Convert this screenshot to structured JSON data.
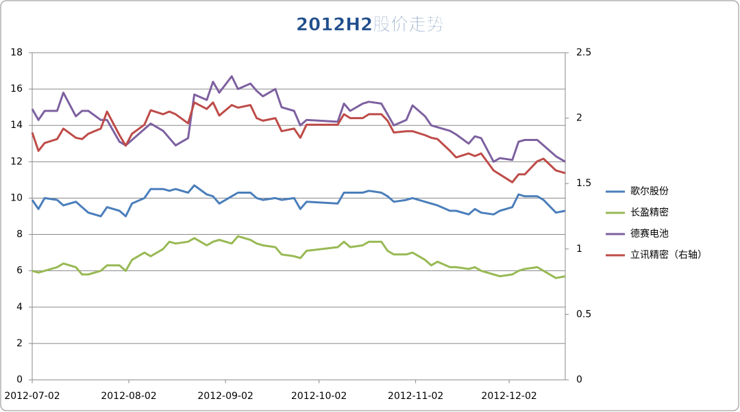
{
  "chart_data": {
    "type": "line",
    "title": "2012H2股价走势",
    "x": [
      "2012-07-02",
      "2012-07-04",
      "2012-07-06",
      "2012-07-10",
      "2012-07-12",
      "2012-07-16",
      "2012-07-18",
      "2012-07-20",
      "2012-07-24",
      "2012-07-26",
      "2012-07-30",
      "2012-08-01",
      "2012-08-03",
      "2012-08-07",
      "2012-08-09",
      "2012-08-13",
      "2012-08-15",
      "2012-08-17",
      "2012-08-21",
      "2012-08-23",
      "2012-08-27",
      "2012-08-29",
      "2012-08-31",
      "2012-09-04",
      "2012-09-06",
      "2012-09-10",
      "2012-09-12",
      "2012-09-14",
      "2012-09-18",
      "2012-09-20",
      "2012-09-24",
      "2012-09-26",
      "2012-09-28",
      "2012-10-08",
      "2012-10-10",
      "2012-10-12",
      "2012-10-16",
      "2012-10-18",
      "2012-10-22",
      "2012-10-24",
      "2012-10-26",
      "2012-10-30",
      "2012-11-01",
      "2012-11-05",
      "2012-11-07",
      "2012-11-09",
      "2012-11-13",
      "2012-11-15",
      "2012-11-19",
      "2012-11-21",
      "2012-11-23",
      "2012-11-27",
      "2012-11-29",
      "2012-12-03",
      "2012-12-05",
      "2012-12-07",
      "2012-12-11",
      "2012-12-13",
      "2012-12-17",
      "2012-12-20"
    ],
    "series": [
      {
        "name": "歌尔股份",
        "color": "#4a7ebb",
        "values": [
          9.9,
          9.4,
          10.0,
          9.9,
          9.6,
          9.8,
          9.5,
          9.2,
          9.0,
          9.5,
          9.3,
          9.0,
          9.7,
          10.0,
          10.5,
          10.5,
          10.4,
          10.5,
          10.3,
          10.7,
          10.2,
          10.1,
          9.7,
          10.1,
          10.3,
          10.3,
          10.0,
          9.9,
          10.0,
          9.9,
          10.0,
          9.4,
          9.8,
          9.7,
          10.3,
          10.3,
          10.3,
          10.4,
          10.3,
          10.1,
          9.8,
          9.9,
          10.0,
          9.8,
          9.7,
          9.6,
          9.3,
          9.3,
          9.1,
          9.4,
          9.2,
          9.1,
          9.3,
          9.5,
          10.2,
          10.1,
          10.1,
          9.9,
          9.2,
          9.3
        ]
      },
      {
        "name": "长盈精密",
        "color": "#98b954",
        "values": [
          6.0,
          5.9,
          6.0,
          6.2,
          6.4,
          6.2,
          5.8,
          5.8,
          6.0,
          6.3,
          6.3,
          6.0,
          6.6,
          7.0,
          6.8,
          7.2,
          7.6,
          7.5,
          7.6,
          7.8,
          7.4,
          7.6,
          7.7,
          7.5,
          7.9,
          7.7,
          7.5,
          7.4,
          7.3,
          6.9,
          6.8,
          6.7,
          7.1,
          7.3,
          7.6,
          7.3,
          7.4,
          7.6,
          7.6,
          7.1,
          6.9,
          6.9,
          7.0,
          6.6,
          6.3,
          6.5,
          6.2,
          6.2,
          6.1,
          6.2,
          6.0,
          5.8,
          5.7,
          5.8,
          6.0,
          6.1,
          6.2,
          6.0,
          5.6,
          5.7
        ]
      },
      {
        "name": "德赛电池",
        "color": "#7d60a0",
        "values": [
          14.9,
          14.3,
          14.8,
          14.8,
          15.8,
          14.5,
          14.8,
          14.8,
          14.3,
          14.3,
          13.1,
          12.9,
          13.2,
          13.8,
          14.1,
          13.7,
          13.3,
          12.9,
          13.3,
          15.7,
          15.4,
          16.4,
          15.8,
          16.7,
          16.0,
          16.3,
          15.9,
          15.6,
          16.0,
          15.0,
          14.8,
          14.0,
          14.3,
          14.2,
          15.2,
          14.8,
          15.2,
          15.3,
          15.2,
          14.6,
          14.0,
          14.3,
          15.1,
          14.5,
          14.0,
          13.9,
          13.7,
          13.5,
          13.0,
          13.4,
          13.3,
          12.0,
          12.2,
          12.1,
          13.1,
          13.2,
          13.2,
          12.9,
          12.3,
          12.0
        ]
      },
      {
        "name": "立讯精密（右轴）",
        "color": "#be4b48",
        "axis": "y2",
        "values": [
          1.89,
          1.75,
          1.81,
          1.84,
          1.92,
          1.85,
          1.84,
          1.88,
          1.92,
          2.05,
          1.87,
          1.79,
          1.88,
          1.95,
          2.06,
          2.03,
          2.05,
          2.03,
          1.96,
          2.12,
          2.07,
          2.12,
          2.02,
          2.1,
          2.08,
          2.1,
          2.0,
          1.98,
          2.0,
          1.9,
          1.92,
          1.85,
          1.95,
          1.95,
          2.03,
          2.0,
          2.0,
          2.03,
          2.03,
          1.98,
          1.89,
          1.9,
          1.9,
          1.87,
          1.85,
          1.84,
          1.75,
          1.7,
          1.73,
          1.71,
          1.73,
          1.6,
          1.57,
          1.51,
          1.57,
          1.57,
          1.67,
          1.69,
          1.6,
          1.58
        ]
      }
    ],
    "xlim": [
      "2012-07-02",
      "2012-12-20"
    ],
    "xticks": [
      "2012-07-02",
      "2012-08-02",
      "2012-09-02",
      "2012-10-02",
      "2012-11-02",
      "2012-12-02"
    ],
    "ylim": [
      0,
      18
    ],
    "yticks": [
      0,
      2,
      4,
      6,
      8,
      10,
      12,
      14,
      16,
      18
    ],
    "y2lim": [
      0,
      2.5
    ],
    "y2ticks": [
      0,
      0.5,
      1,
      1.5,
      2,
      2.5
    ],
    "grid": true,
    "legend": "right"
  }
}
